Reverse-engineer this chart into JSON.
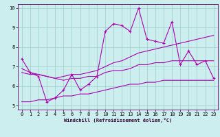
{
  "xlabel": "Windchill (Refroidissement éolien,°C)",
  "bg_color": "#cceeee",
  "line_color": "#aa00aa",
  "grid_color": "#99cccc",
  "xlim": [
    -0.5,
    23.5
  ],
  "ylim": [
    4.8,
    10.2
  ],
  "yticks": [
    5,
    6,
    7,
    8,
    9,
    10
  ],
  "xticks": [
    0,
    1,
    2,
    3,
    4,
    5,
    6,
    7,
    8,
    9,
    10,
    11,
    12,
    13,
    14,
    15,
    16,
    17,
    18,
    19,
    20,
    21,
    22,
    23
  ],
  "line1_x": [
    0,
    1,
    2,
    3,
    4,
    5,
    6,
    7,
    8,
    9,
    10,
    11,
    12,
    13,
    14,
    15,
    16,
    17,
    18,
    19,
    20,
    21,
    22,
    23
  ],
  "line1_y": [
    7.4,
    6.7,
    6.5,
    5.2,
    5.4,
    5.8,
    6.6,
    5.8,
    6.1,
    6.5,
    8.8,
    9.2,
    9.1,
    8.8,
    10.0,
    8.4,
    8.3,
    8.2,
    9.3,
    7.1,
    7.8,
    7.1,
    7.3,
    6.4
  ],
  "line2_x": [
    0,
    1,
    2,
    3,
    4,
    5,
    6,
    7,
    8,
    9,
    10,
    11,
    12,
    13,
    14,
    15,
    16,
    17,
    18,
    19,
    20,
    21,
    22,
    23
  ],
  "line2_y": [
    6.9,
    6.7,
    6.6,
    6.5,
    6.4,
    6.5,
    6.6,
    6.6,
    6.7,
    6.8,
    7.0,
    7.2,
    7.3,
    7.5,
    7.7,
    7.8,
    7.9,
    8.0,
    8.1,
    8.2,
    8.3,
    8.4,
    8.5,
    8.6
  ],
  "line3_x": [
    0,
    1,
    2,
    3,
    4,
    5,
    6,
    7,
    8,
    9,
    10,
    11,
    12,
    13,
    14,
    15,
    16,
    17,
    18,
    19,
    20,
    21,
    22,
    23
  ],
  "line3_y": [
    6.7,
    6.6,
    6.6,
    6.5,
    6.4,
    6.3,
    6.4,
    6.4,
    6.5,
    6.5,
    6.7,
    6.8,
    6.8,
    6.9,
    7.1,
    7.1,
    7.2,
    7.2,
    7.3,
    7.3,
    7.3,
    7.3,
    7.3,
    7.3
  ],
  "line4_x": [
    0,
    1,
    2,
    3,
    4,
    5,
    6,
    7,
    8,
    9,
    10,
    11,
    12,
    13,
    14,
    15,
    16,
    17,
    18,
    19,
    20,
    21,
    22,
    23
  ],
  "line4_y": [
    5.2,
    5.2,
    5.3,
    5.3,
    5.4,
    5.5,
    5.5,
    5.6,
    5.6,
    5.7,
    5.8,
    5.9,
    6.0,
    6.1,
    6.1,
    6.2,
    6.2,
    6.3,
    6.3,
    6.3,
    6.3,
    6.3,
    6.3,
    6.3
  ],
  "tick_fontsize": 5,
  "xlabel_fontsize": 5,
  "linewidth": 0.8,
  "marker_size": 3
}
